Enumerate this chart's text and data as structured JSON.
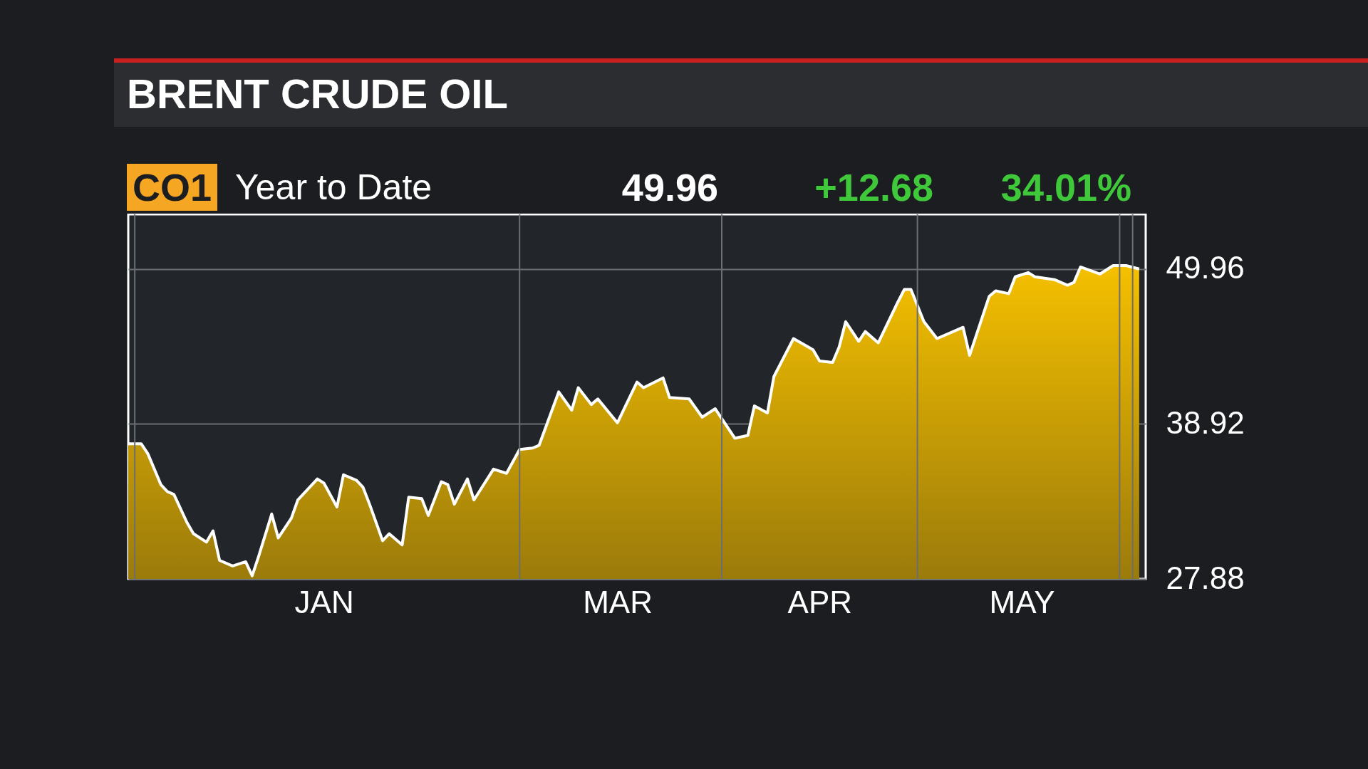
{
  "chart_data": {
    "type": "area",
    "title": "BRENT CRUDE OIL",
    "subtitle": "Year to Date",
    "annotations": [
      "CO1",
      "49.96",
      "+12.68",
      "34.01%"
    ],
    "x": [
      "--01-01",
      "--01-03",
      "--01-04",
      "--01-06",
      "--01-07",
      "--01-08",
      "--01-10",
      "--01-11",
      "--01-13",
      "--01-14",
      "--01-15",
      "--01-17",
      "--01-19",
      "--01-20",
      "--01-21",
      "--01-23",
      "--01-24",
      "--01-26",
      "--01-27",
      "--01-30",
      "--01-31",
      "--02-02",
      "--02-03",
      "--02-05",
      "--02-06",
      "--02-07",
      "--02-09",
      "--02-10",
      "--02-12",
      "--02-13",
      "--02-15",
      "--02-16",
      "--02-18",
      "--02-19",
      "--02-20",
      "--02-22",
      "--02-23",
      "--02-26",
      "--02-28",
      "--03-01",
      "--03-03",
      "--03-04",
      "--03-07",
      "--03-09",
      "--03-10",
      "--03-12",
      "--03-13",
      "--03-16",
      "--03-19",
      "--03-20",
      "--03-23",
      "--03-24",
      "--03-27",
      "--03-29",
      "--03-31",
      "--04-03",
      "--04-05",
      "--04-06",
      "--04-08",
      "--04-09",
      "--04-10",
      "--04-12",
      "--04-15",
      "--04-16",
      "--04-18",
      "--04-19",
      "--04-20",
      "--04-22",
      "--04-23",
      "--04-25",
      "--04-28",
      "--04-29",
      "--04-30",
      "--05-02",
      "--05-04",
      "--05-08",
      "--05-09",
      "--05-12",
      "--05-13",
      "--05-15",
      "--05-16",
      "--05-18",
      "--05-19",
      "--05-22",
      "--05-24",
      "--05-25",
      "--05-26",
      "--05-29",
      "--05-31",
      "--06-02",
      "--06-04"
    ],
    "values": [
      37.5,
      37.5,
      36.8,
      34.6,
      34.1,
      33.9,
      31.9,
      31.1,
      30.5,
      31.3,
      29.2,
      28.8,
      29.1,
      28.1,
      29.5,
      32.5,
      30.8,
      32.2,
      33.5,
      35.0,
      34.7,
      33.0,
      35.3,
      34.9,
      34.4,
      33.2,
      30.6,
      31.1,
      30.3,
      33.7,
      33.6,
      32.4,
      34.8,
      34.6,
      33.2,
      35.0,
      33.5,
      35.7,
      35.4,
      37.1,
      37.2,
      37.4,
      41.2,
      39.9,
      41.5,
      40.3,
      40.7,
      39.0,
      41.9,
      41.5,
      42.2,
      40.8,
      40.7,
      39.4,
      40.0,
      37.9,
      38.1,
      40.2,
      39.7,
      42.3,
      43.2,
      45.0,
      44.2,
      43.4,
      43.3,
      44.4,
      46.2,
      44.8,
      45.5,
      44.7,
      47.6,
      48.5,
      48.5,
      46.2,
      45.0,
      45.8,
      43.8,
      48.0,
      48.4,
      48.2,
      49.4,
      49.7,
      49.4,
      49.2,
      48.8,
      49.0,
      50.1,
      49.6,
      50.2,
      50.2,
      49.96
    ],
    "color": "#f5c000",
    "xlim": [
      "--01-01",
      "--06-05"
    ],
    "xticks": [
      {
        "value": "--01-31",
        "label": "JAN"
      },
      {
        "value": "--03-16",
        "label": "MAR"
      },
      {
        "value": "--04-16",
        "label": "APR"
      },
      {
        "value": "--05-17",
        "label": "MAY"
      }
    ],
    "ylim": [
      27.88,
      53.85
    ],
    "yticks": [
      27.88,
      38.92,
      49.96
    ],
    "grid": "y",
    "ref_lines": [
      {
        "axis": "x",
        "value": "--01-02",
        "color": "#6b6e72"
      },
      {
        "axis": "x",
        "value": "--03-01",
        "color": "#6b6e72"
      },
      {
        "axis": "x",
        "value": "--04-01",
        "color": "#6b6e72"
      },
      {
        "axis": "x",
        "value": "--05-01",
        "color": "#6b6e72"
      },
      {
        "axis": "x",
        "value": "--06-01",
        "color": "#6b6e72"
      },
      {
        "axis": "x",
        "value": "--06-03",
        "color": "#6b6e72"
      }
    ]
  }
}
